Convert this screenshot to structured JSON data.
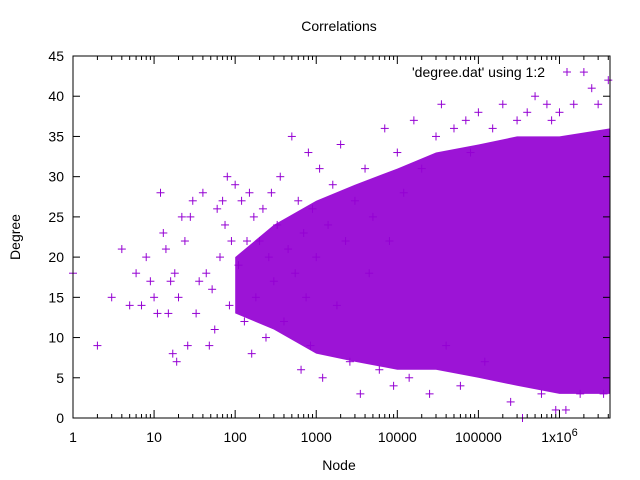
{
  "chart_data": {
    "type": "scatter",
    "title": "Correlations",
    "xlabel": "Node",
    "ylabel": "Degree",
    "x_scale": "log",
    "xlim": [
      1,
      4200000
    ],
    "ylim": [
      0,
      45
    ],
    "grid": false,
    "legend": {
      "position": "top-right",
      "entries": [
        {
          "label": "'degree.dat' using 1:2",
          "marker": "+",
          "color": "#9400d3"
        }
      ]
    },
    "xticks": [
      {
        "value": 1,
        "label": "1"
      },
      {
        "value": 10,
        "label": "10"
      },
      {
        "value": 100,
        "label": "100"
      },
      {
        "value": 1000,
        "label": "1000"
      },
      {
        "value": 10000,
        "label": "10000"
      },
      {
        "value": 100000,
        "label": "100000"
      },
      {
        "value": 1000000,
        "label": "1x10",
        "sup": "6"
      }
    ],
    "yticks": [
      0,
      5,
      10,
      15,
      20,
      25,
      30,
      35,
      40,
      45
    ],
    "series": [
      {
        "name": "'degree.dat' using 1:2",
        "color": "#9400d3",
        "marker": "+",
        "points": [
          [
            1,
            18
          ],
          [
            2,
            9
          ],
          [
            3,
            15
          ],
          [
            4,
            21
          ],
          [
            5,
            14
          ],
          [
            6,
            18
          ],
          [
            7,
            14
          ],
          [
            8,
            20
          ],
          [
            9,
            17
          ],
          [
            10,
            15
          ],
          [
            11,
            13
          ],
          [
            12,
            28
          ],
          [
            13,
            23
          ],
          [
            14,
            21
          ],
          [
            15,
            13
          ],
          [
            16,
            17
          ],
          [
            17,
            8
          ],
          [
            18,
            18
          ],
          [
            19,
            7
          ],
          [
            20,
            15
          ],
          [
            22,
            25
          ],
          [
            24,
            22
          ],
          [
            26,
            9
          ],
          [
            28,
            25
          ],
          [
            30,
            27
          ],
          [
            33,
            13
          ],
          [
            36,
            17
          ],
          [
            40,
            28
          ],
          [
            44,
            18
          ],
          [
            48,
            9
          ],
          [
            52,
            16
          ],
          [
            56,
            11
          ],
          [
            60,
            26
          ],
          [
            65,
            20
          ],
          [
            70,
            27
          ],
          [
            75,
            24
          ],
          [
            80,
            30
          ],
          [
            85,
            14
          ],
          [
            90,
            22
          ],
          [
            100,
            29
          ],
          [
            110,
            19
          ],
          [
            120,
            27
          ],
          [
            130,
            12
          ],
          [
            140,
            22
          ],
          [
            150,
            28
          ],
          [
            160,
            8
          ],
          [
            170,
            25
          ],
          [
            180,
            15
          ],
          [
            200,
            22
          ],
          [
            220,
            26
          ],
          [
            240,
            10
          ],
          [
            260,
            20
          ],
          [
            280,
            28
          ],
          [
            300,
            17
          ],
          [
            330,
            24
          ],
          [
            360,
            30
          ],
          [
            400,
            12
          ],
          [
            450,
            21
          ],
          [
            500,
            35
          ],
          [
            550,
            18
          ],
          [
            600,
            27
          ],
          [
            650,
            6
          ],
          [
            700,
            23
          ],
          [
            750,
            15
          ],
          [
            800,
            33
          ],
          [
            850,
            9
          ],
          [
            900,
            26
          ],
          [
            1000,
            20
          ],
          [
            1100,
            31
          ],
          [
            1200,
            5
          ],
          [
            1400,
            24
          ],
          [
            1600,
            29
          ],
          [
            1800,
            14
          ],
          [
            2000,
            34
          ],
          [
            2300,
            22
          ],
          [
            2600,
            7
          ],
          [
            3000,
            27
          ],
          [
            3500,
            3
          ],
          [
            4000,
            31
          ],
          [
            4500,
            18
          ],
          [
            5000,
            25
          ],
          [
            6000,
            6
          ],
          [
            7000,
            36
          ],
          [
            8000,
            22
          ],
          [
            9000,
            4
          ],
          [
            10000,
            33
          ],
          [
            12000,
            28
          ],
          [
            14000,
            5
          ],
          [
            16000,
            37
          ],
          [
            20000,
            31
          ],
          [
            25000,
            3
          ],
          [
            30000,
            35
          ],
          [
            35000,
            39
          ],
          [
            40000,
            9
          ],
          [
            50000,
            36
          ],
          [
            60000,
            4
          ],
          [
            70000,
            37
          ],
          [
            80000,
            33
          ],
          [
            100000,
            38
          ],
          [
            120000,
            7
          ],
          [
            150000,
            36
          ],
          [
            200000,
            39
          ],
          [
            250000,
            2
          ],
          [
            300000,
            37
          ],
          [
            350000,
            0
          ],
          [
            400000,
            38
          ],
          [
            500000,
            40
          ],
          [
            600000,
            3
          ],
          [
            700000,
            39
          ],
          [
            800000,
            37
          ],
          [
            900000,
            1
          ],
          [
            1000000,
            38
          ],
          [
            1200000,
            1
          ],
          [
            1500000,
            39
          ],
          [
            1800000,
            3
          ],
          [
            2000000,
            43
          ],
          [
            2500000,
            41
          ],
          [
            3000000,
            39
          ],
          [
            3500000,
            3
          ],
          [
            4000000,
            42
          ]
        ]
      }
    ],
    "dense_band": {
      "description": "saturated region of overlapping markers",
      "profile": [
        {
          "x": 100,
          "y_low": 13,
          "y_high": 20
        },
        {
          "x": 300,
          "y_low": 11,
          "y_high": 24
        },
        {
          "x": 1000,
          "y_low": 8,
          "y_high": 27
        },
        {
          "x": 3000,
          "y_low": 7,
          "y_high": 29
        },
        {
          "x": 10000,
          "y_low": 6,
          "y_high": 31
        },
        {
          "x": 30000,
          "y_low": 6,
          "y_high": 33
        },
        {
          "x": 100000,
          "y_low": 5,
          "y_high": 34
        },
        {
          "x": 300000,
          "y_low": 4,
          "y_high": 35
        },
        {
          "x": 1000000,
          "y_low": 3,
          "y_high": 35
        },
        {
          "x": 4200000,
          "y_low": 3,
          "y_high": 36
        }
      ]
    }
  }
}
